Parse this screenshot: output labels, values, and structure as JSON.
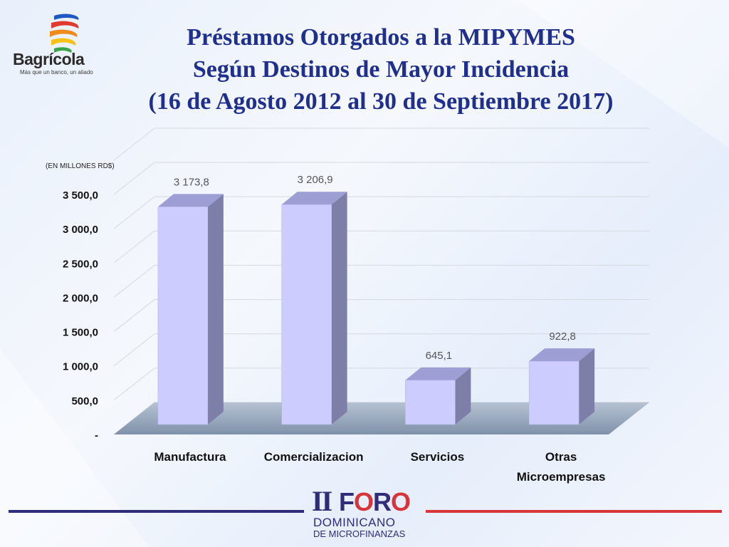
{
  "logo": {
    "name": "Bagrícola",
    "tagline": "Más que un banco, un aliado"
  },
  "title": {
    "line1": "Préstamos Otorgados a la MIPYMES",
    "line2": "Según Destinos de Mayor Incidencia",
    "line3": "(16  de Agosto 2012 al 30 de Septiembre 2017)"
  },
  "chart_data": {
    "type": "bar",
    "title": "Préstamos Otorgados a la MIPYMES Según Destinos de Mayor Incidencia (16  de Agosto 2012 al 30 de Septiembre 2017)",
    "unit_label": "(EN MILLONES RD$)",
    "categories": [
      "Manufactura",
      "Comercializacion",
      "Servicios",
      "Otras Microempresas"
    ],
    "values": [
      3173.8,
      3206.9,
      645.1,
      922.8
    ],
    "value_labels": [
      "3 173,8",
      "3 206,9",
      "645,1",
      "922,8"
    ],
    "ylim": [
      0,
      3500
    ],
    "yticks": [
      0,
      500,
      1000,
      1500,
      2000,
      2500,
      3000,
      3500
    ],
    "ytick_labels": [
      "-",
      "500,0",
      "1 000,0",
      "1 500,0",
      "2 000,0",
      "2 500,0",
      "3 000,0",
      "3 500,0"
    ],
    "grid": true,
    "legend": "none",
    "bar_color": "#ccccff"
  },
  "footer": {
    "numeral": "II",
    "word_start": "F",
    "word_o1": "O",
    "word_mid": "R",
    "word_o2": "O",
    "line1": "DOMINICANO",
    "line2": "DE MICROFINANZAS"
  }
}
